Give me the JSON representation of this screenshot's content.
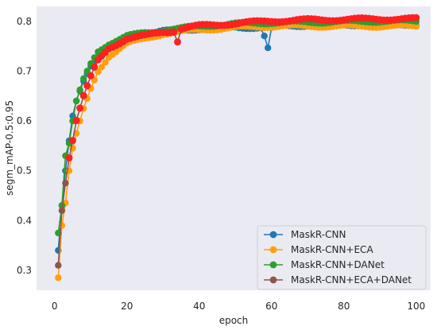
{
  "chart_data": {
    "type": "line",
    "title": "",
    "xlabel": "epoch",
    "ylabel": "segm_mAP-0.5:0.95",
    "xlim": [
      -5,
      104
    ],
    "ylim": [
      0.26,
      0.83
    ],
    "xticks": [
      0,
      20,
      40,
      60,
      80,
      100
    ],
    "yticks": [
      0.3,
      0.4,
      0.5,
      0.6,
      0.7,
      0.8
    ],
    "xtick_labels": [
      "0",
      "20",
      "40",
      "60",
      "80",
      "100"
    ],
    "ytick_labels": [
      "0.3",
      "0.4",
      "0.5",
      "0.6",
      "0.7",
      "0.8"
    ],
    "grid": false,
    "legend_position": "lower-right",
    "background": "#eaeaf2",
    "series": [
      {
        "name": "MaskR-CNN",
        "color": "#1f77b4",
        "anchors": [
          [
            1,
            0.34
          ],
          [
            2,
            0.43
          ],
          [
            3,
            0.5
          ],
          [
            4,
            0.56
          ],
          [
            5,
            0.61
          ],
          [
            6,
            0.64
          ],
          [
            8,
            0.68
          ],
          [
            10,
            0.71
          ],
          [
            12,
            0.73
          ],
          [
            15,
            0.75
          ],
          [
            20,
            0.765
          ],
          [
            25,
            0.775
          ],
          [
            30,
            0.78
          ],
          [
            40,
            0.785
          ],
          [
            50,
            0.788
          ],
          [
            57,
            0.787
          ],
          [
            58,
            0.77
          ],
          [
            59,
            0.745
          ],
          [
            60,
            0.785
          ],
          [
            61,
            0.79
          ],
          [
            70,
            0.792
          ],
          [
            80,
            0.793
          ],
          [
            90,
            0.793
          ],
          [
            100,
            0.794
          ]
        ]
      },
      {
        "name": "MaskR-CNN+ECA",
        "color": "#ff9f0e",
        "anchors": [
          [
            1,
            0.285
          ],
          [
            2,
            0.39
          ],
          [
            3,
            0.435
          ],
          [
            4,
            0.5
          ],
          [
            5,
            0.545
          ],
          [
            6,
            0.575
          ],
          [
            8,
            0.625
          ],
          [
            10,
            0.665
          ],
          [
            12,
            0.7
          ],
          [
            15,
            0.73
          ],
          [
            20,
            0.755
          ],
          [
            25,
            0.765
          ],
          [
            30,
            0.775
          ],
          [
            40,
            0.783
          ],
          [
            50,
            0.787
          ],
          [
            60,
            0.79
          ],
          [
            70,
            0.79
          ],
          [
            80,
            0.79
          ],
          [
            90,
            0.79
          ],
          [
            100,
            0.79
          ]
        ]
      },
      {
        "name": "MaskR-CNN+DANet",
        "color": "#2ca02c",
        "anchors": [
          [
            1,
            0.375
          ],
          [
            2,
            0.43
          ],
          [
            3,
            0.53
          ],
          [
            4,
            0.555
          ],
          [
            5,
            0.6
          ],
          [
            6,
            0.64
          ],
          [
            8,
            0.685
          ],
          [
            10,
            0.715
          ],
          [
            12,
            0.74
          ],
          [
            15,
            0.755
          ],
          [
            20,
            0.77
          ],
          [
            25,
            0.777
          ],
          [
            30,
            0.782
          ],
          [
            40,
            0.79
          ],
          [
            50,
            0.795
          ],
          [
            60,
            0.797
          ],
          [
            70,
            0.798
          ],
          [
            80,
            0.799
          ],
          [
            90,
            0.8
          ],
          [
            100,
            0.8
          ]
        ]
      },
      {
        "name": "MaskR-CNN+ECA+DANet",
        "color": "#8c564b",
        "anchors": [
          [
            1,
            0.31
          ],
          [
            2,
            0.42
          ],
          [
            3,
            0.475
          ],
          [
            4,
            0.525
          ],
          [
            5,
            0.56
          ],
          [
            6,
            0.6
          ],
          [
            8,
            0.65
          ],
          [
            10,
            0.69
          ],
          [
            12,
            0.72
          ],
          [
            15,
            0.745
          ],
          [
            20,
            0.765
          ],
          [
            25,
            0.77
          ],
          [
            30,
            0.778
          ],
          [
            33,
            0.78
          ],
          [
            34,
            0.76
          ],
          [
            35,
            0.785
          ],
          [
            40,
            0.79
          ],
          [
            50,
            0.795
          ],
          [
            60,
            0.8
          ],
          [
            70,
            0.802
          ],
          [
            80,
            0.803
          ],
          [
            90,
            0.804
          ],
          [
            100,
            0.804
          ]
        ]
      }
    ],
    "overlay_color": "#ff2020"
  }
}
